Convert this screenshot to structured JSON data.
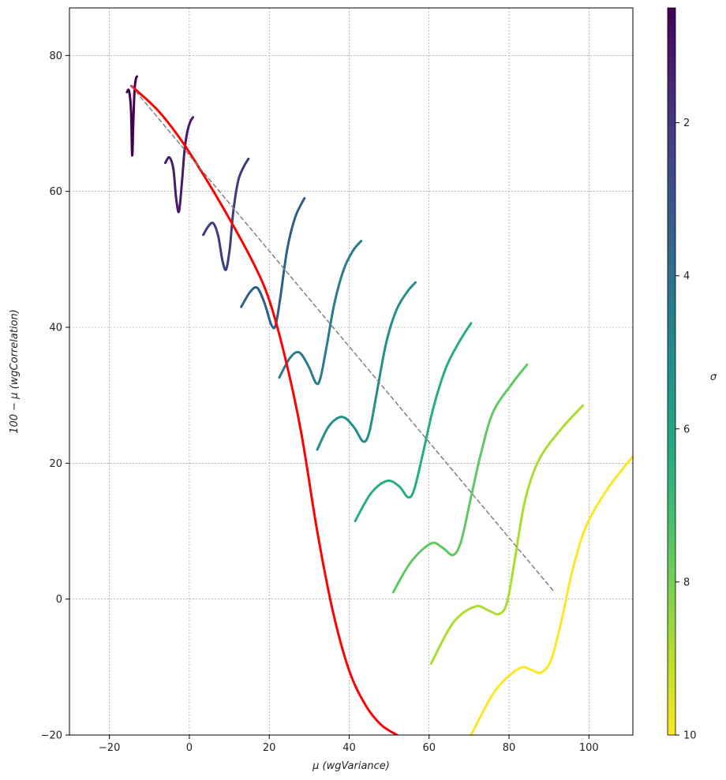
{
  "chart_data": {
    "type": "line",
    "xlabel": "μ (wgVariance)",
    "ylabel": "100 − μ (wgCorrelation)",
    "xlim": [
      -30,
      111
    ],
    "ylim": [
      -20,
      87
    ],
    "xticks": [
      -20,
      0,
      20,
      40,
      60,
      80,
      100
    ],
    "yticks": [
      -20,
      0,
      20,
      40,
      60,
      80
    ],
    "grid": true,
    "colorbar": {
      "label": "σ",
      "range": [
        0.5,
        10
      ],
      "ticks": [
        2,
        4,
        6,
        8,
        10
      ],
      "inverted": true,
      "colormap": "viridis"
    },
    "series": [
      {
        "color": "#440154",
        "x": [
          -15.6,
          -15.1,
          -14.6,
          -14.3,
          -14.0,
          -13.7,
          -13.4,
          -13.1
        ],
        "y": [
          74.6,
          74.8,
          72.0,
          65.3,
          70.5,
          74.9,
          76.5,
          76.9
        ]
      },
      {
        "color": "#471a6e",
        "x": [
          -6.0,
          -5.0,
          -4.0,
          -3.3,
          -2.6,
          -1.9,
          -1.2,
          -0.5,
          0.2,
          0.9
        ],
        "y": [
          64.2,
          65.0,
          63.3,
          59.0,
          57.0,
          61.0,
          66.0,
          68.8,
          70.2,
          70.9
        ]
      },
      {
        "color": "#3b3c82",
        "x": [
          3.5,
          4.8,
          6.0,
          7.2,
          8.3,
          9.2,
          10.1,
          11.0,
          12.2,
          13.5,
          14.8
        ],
        "y": [
          53.6,
          54.9,
          55.3,
          53.5,
          49.8,
          48.5,
          51.5,
          57.0,
          61.5,
          63.5,
          64.8
        ]
      },
      {
        "color": "#2e5f8a",
        "x": [
          13.0,
          15.2,
          17.0,
          18.8,
          20.5,
          21.6,
          22.8,
          24.5,
          26.5,
          28.8
        ],
        "y": [
          43.0,
          45.2,
          45.8,
          43.6,
          40.4,
          40.3,
          44.5,
          51.5,
          56.2,
          59.0
        ]
      },
      {
        "color": "#287c8e",
        "x": [
          22.5,
          25.2,
          27.5,
          29.8,
          31.7,
          32.8,
          34.3,
          36.3,
          38.7,
          41.0,
          43.0
        ],
        "y": [
          32.6,
          35.5,
          36.3,
          34.3,
          31.8,
          32.5,
          37.0,
          43.5,
          48.6,
          51.3,
          52.7
        ]
      },
      {
        "color": "#21908d",
        "x": [
          32.0,
          35.0,
          38.3,
          41.2,
          43.5,
          45.0,
          46.8,
          49.3,
          51.8,
          54.5,
          56.6
        ],
        "y": [
          22.0,
          25.5,
          26.8,
          25.3,
          23.2,
          24.5,
          30.0,
          37.8,
          42.5,
          45.2,
          46.6
        ]
      },
      {
        "color": "#27ad81",
        "x": [
          41.5,
          45.5,
          49.5,
          52.5,
          54.7,
          56.2,
          58.3,
          61.0,
          64.2,
          67.5,
          70.5
        ],
        "y": [
          11.5,
          15.6,
          17.4,
          16.6,
          15.0,
          16.0,
          21.0,
          28.0,
          34.0,
          37.8,
          40.6
        ]
      },
      {
        "color": "#5ec962",
        "x": [
          51.0,
          55.5,
          60.5,
          63.5,
          66.0,
          68.0,
          70.5,
          73.0,
          76.0,
          80.5,
          84.5
        ],
        "y": [
          1.0,
          5.5,
          8.2,
          7.5,
          6.5,
          8.5,
          15.0,
          21.5,
          27.5,
          31.5,
          34.5
        ]
      },
      {
        "color": "#addc30",
        "x": [
          60.5,
          66.0,
          71.5,
          75.0,
          77.5,
          79.5,
          81.5,
          84.0,
          87.5,
          93.0,
          98.5
        ],
        "y": [
          -9.5,
          -3.5,
          -1.1,
          -1.7,
          -2.2,
          -0.5,
          6.0,
          14.5,
          20.5,
          25.0,
          28.5
        ]
      },
      {
        "color": "#fde725",
        "x": [
          70.5,
          76.5,
          82.5,
          85.5,
          88.0,
          90.5,
          93.0,
          96.0,
          99.5,
          105.0,
          111.0
        ],
        "y": [
          -20.0,
          -13.5,
          -10.2,
          -10.4,
          -10.8,
          -9.0,
          -3.5,
          4.5,
          11.0,
          16.5,
          21.0
        ]
      },
      {
        "color": "#ff0000",
        "width": 3,
        "x": [
          -14.5,
          -8,
          -2,
          4,
          10,
          16,
          20,
          24,
          28,
          32,
          36,
          40,
          44,
          48,
          52,
          53.5
        ],
        "y": [
          75.5,
          72.0,
          67.5,
          62.0,
          56.0,
          49.5,
          44.0,
          35.5,
          24.5,
          10.0,
          -2.0,
          -10.5,
          -15.5,
          -18.5,
          -20.0,
          -20.5
        ]
      },
      {
        "color": "#808080",
        "dashed": true,
        "x": [
          -14.5,
          91
        ],
        "y": [
          75.5,
          1.3
        ]
      }
    ]
  }
}
